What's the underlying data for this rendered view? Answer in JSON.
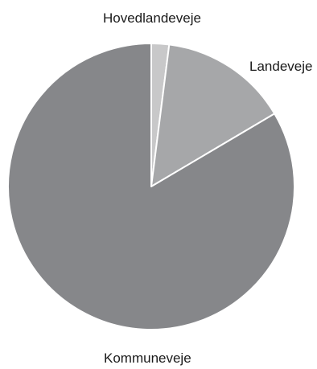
{
  "chart_data": {
    "type": "pie",
    "slices": [
      {
        "label": "Hovedlandeveje",
        "value": 2.0,
        "color": "#c8c8c9"
      },
      {
        "label": "Landeveje",
        "value": 14.5,
        "color": "#a6a7a9"
      },
      {
        "label": "Kommuneveje",
        "value": 83.5,
        "color": "#86878a"
      }
    ],
    "start_angle_deg": 0,
    "direction": "clockwise"
  }
}
